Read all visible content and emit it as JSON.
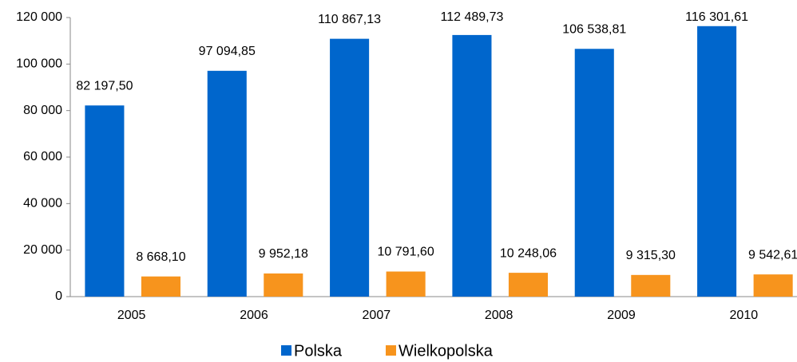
{
  "chart_data": {
    "type": "bar",
    "categories": [
      "2005",
      "2006",
      "2007",
      "2008",
      "2009",
      "2010"
    ],
    "series": [
      {
        "name": "Polska",
        "color": "#0066cc",
        "values": [
          82197.5,
          97094.85,
          110867.13,
          112489.73,
          106538.81,
          116301.61
        ],
        "value_labels": [
          "82 197,50",
          "97 094,85",
          "110 867,13",
          "112 489,73",
          "106 538,81",
          "116 301,61"
        ]
      },
      {
        "name": "Wielkopolska",
        "color": "#f7941d",
        "values": [
          8668.1,
          9952.18,
          10791.6,
          10248.06,
          9315.3,
          9542.61
        ],
        "value_labels": [
          "8 668,10",
          "9 952,18",
          "10 791,60",
          "10 248,06",
          "9 315,30",
          "9 542,61"
        ]
      }
    ],
    "ylim": [
      0,
      120000
    ],
    "yticks": [
      0,
      {
        "value": 20000,
        "label": "20 000"
      },
      {
        "value": 40000,
        "label": "40 000"
      },
      {
        "value": 60000,
        "label": "60 000"
      },
      {
        "value": 80000,
        "label": "80 000"
      },
      {
        "value": 100000,
        "label": "100 000"
      },
      {
        "value": 120000,
        "label": "120 000"
      }
    ],
    "grid": false,
    "legend": "bottom"
  }
}
